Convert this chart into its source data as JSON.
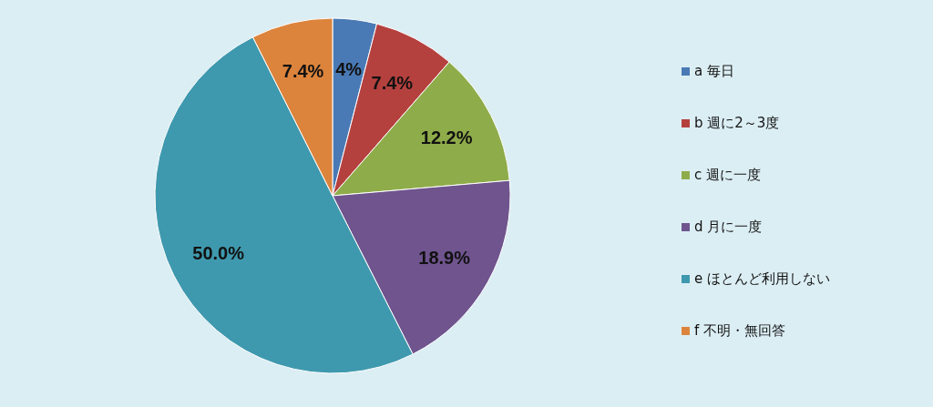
{
  "chart_data": {
    "type": "pie",
    "categories": [
      "a 毎日",
      "b 週に2～3度",
      "c 週に一度",
      "d 月に一度",
      "e ほとんど利用しない",
      "f 不明・無回答"
    ],
    "values": [
      4,
      7.4,
      12.2,
      18.9,
      50.0,
      7.4
    ],
    "value_labels": [
      "4%",
      "7.4%",
      "12.2%",
      "18.9%",
      "50.0%",
      "7.4%"
    ],
    "colors": [
      "#4a7ab5",
      "#b5413f",
      "#8fac4a",
      "#6f548e",
      "#3f99ae",
      "#dc843c"
    ],
    "legend": "right"
  }
}
